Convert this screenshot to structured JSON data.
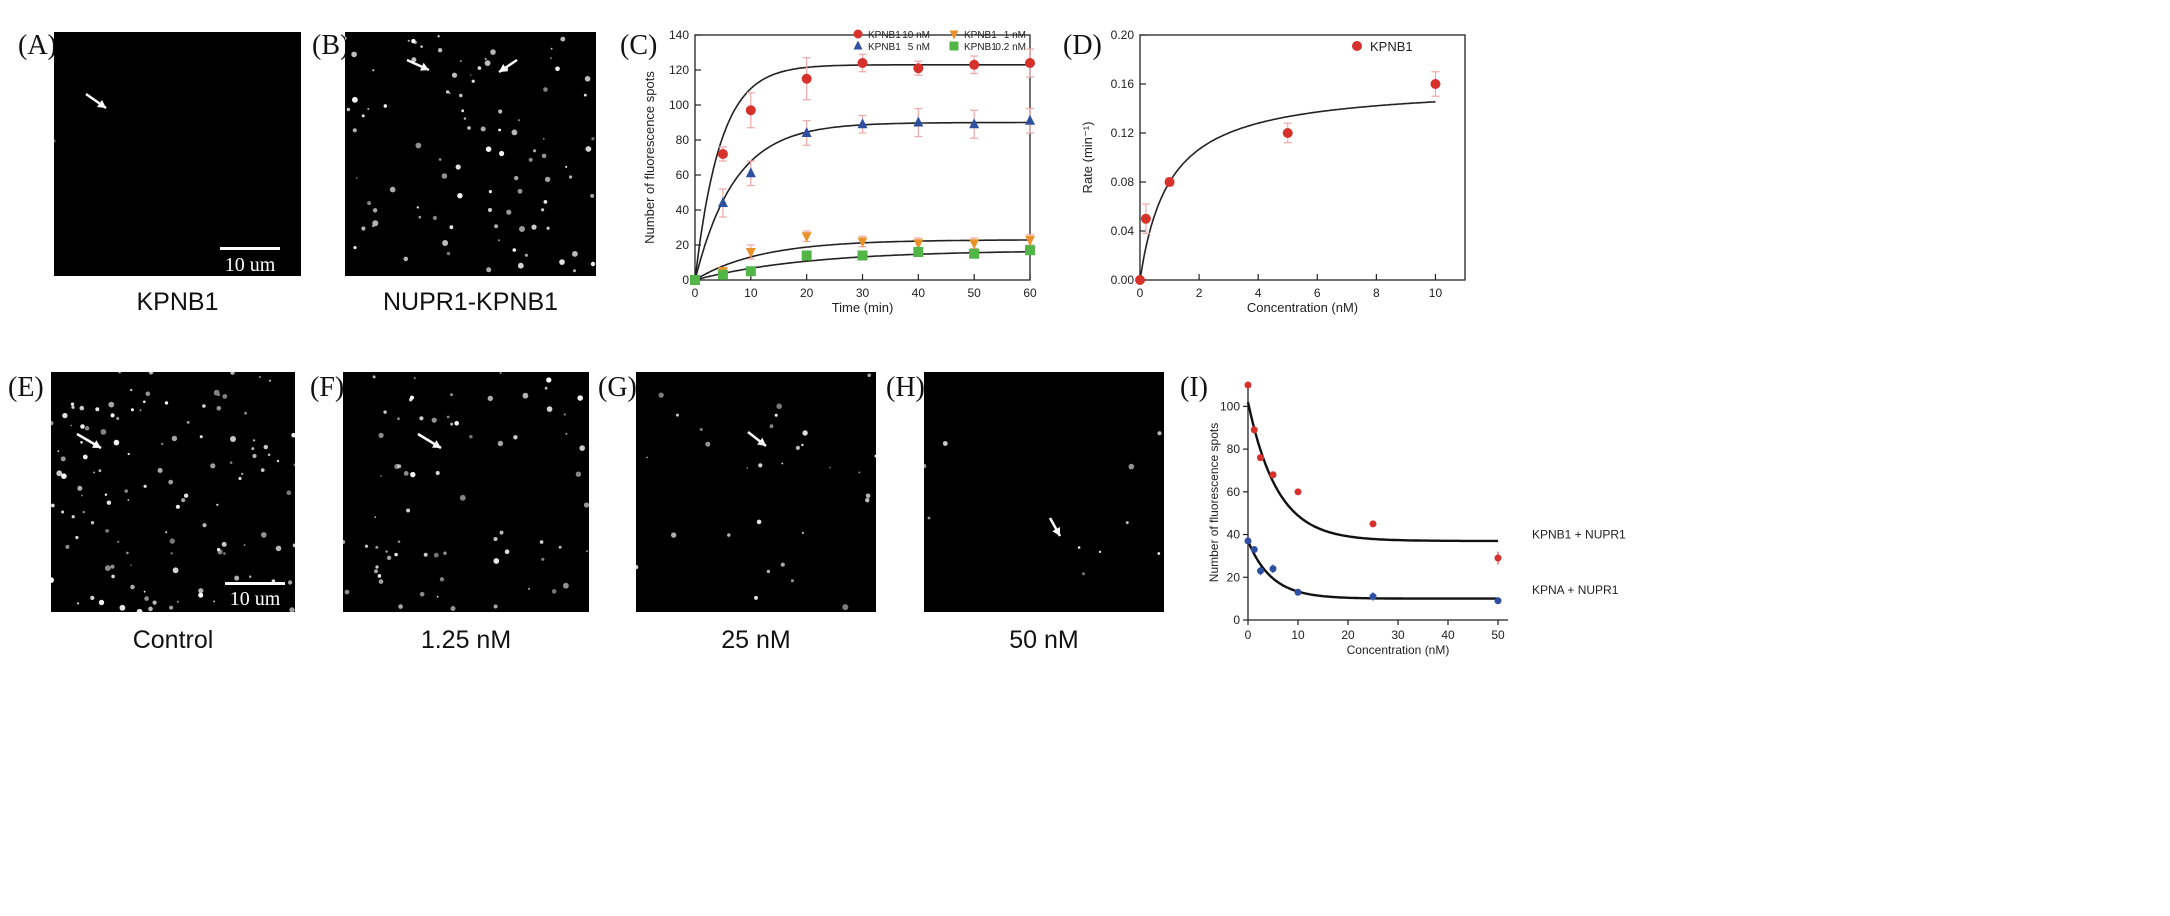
{
  "panels": {
    "A": {
      "label": "(A)",
      "caption": "KPNB1",
      "scalebar": "10 um"
    },
    "B": {
      "label": "(B)",
      "caption": "NUPR1-KPNB1"
    },
    "C": {
      "label": "(C)"
    },
    "D": {
      "label": "(D)"
    },
    "E": {
      "label": "(E)",
      "caption": "Control",
      "scalebar": "10 um"
    },
    "F": {
      "label": "(F)",
      "caption": "1.25 nM"
    },
    "G": {
      "label": "(G)",
      "caption": "25 nM"
    },
    "H": {
      "label": "(H)",
      "caption": "50 nM"
    },
    "I": {
      "label": "(I)"
    }
  },
  "colors": {
    "red": "#d7312c",
    "blue": "#2f4fa0",
    "orange": "#e8922a",
    "green": "#52b548",
    "fit": "#222222",
    "error_pink": "#f0a8a8"
  },
  "chart_data": [
    {
      "id": "C",
      "type": "scatter",
      "xlabel": "Time (min)",
      "ylabel": "Number of fluorescence spots",
      "xlim": [
        0,
        60
      ],
      "ylim": [
        0,
        140
      ],
      "xticks": [
        0,
        10,
        20,
        30,
        40,
        50,
        60
      ],
      "yticks": [
        0,
        20,
        40,
        60,
        80,
        100,
        120,
        140
      ],
      "legend_position": "top-right",
      "series": [
        {
          "name": "KPNB1",
          "conc": "10 nM",
          "marker": "circle",
          "color": "#d7312c",
          "x": [
            0,
            5,
            10,
            20,
            30,
            40,
            50,
            60
          ],
          "y": [
            0,
            72,
            97,
            115,
            124,
            121,
            123,
            124
          ],
          "err": [
            0,
            4,
            10,
            12,
            5,
            4,
            5,
            8
          ],
          "fit": {
            "ymax": 123,
            "k": 0.22
          }
        },
        {
          "name": "KPNB1",
          "conc": "5 nM",
          "marker": "triangle",
          "color": "#2f4fa0",
          "x": [
            0,
            5,
            10,
            20,
            30,
            40,
            50,
            60
          ],
          "y": [
            0,
            44,
            61,
            84,
            89,
            90,
            89,
            91
          ],
          "err": [
            0,
            8,
            7,
            7,
            5,
            8,
            8,
            7
          ],
          "fit": {
            "ymax": 90,
            "k": 0.14
          }
        },
        {
          "name": "KPNB1",
          "conc": "1 nM",
          "marker": "triangle-down",
          "color": "#e8922a",
          "x": [
            0,
            5,
            10,
            20,
            30,
            40,
            50,
            60
          ],
          "y": [
            0,
            5,
            16,
            25,
            22,
            21,
            21,
            23
          ],
          "err": [
            0,
            2,
            4,
            3,
            3,
            3,
            3,
            3
          ],
          "fit": {
            "ymax": 23,
            "k": 0.085
          }
        },
        {
          "name": "KPNB1",
          "conc": "0.2 nM",
          "marker": "square",
          "color": "#52b548",
          "x": [
            0,
            5,
            10,
            20,
            30,
            40,
            50,
            60
          ],
          "y": [
            0,
            3,
            5,
            14,
            14,
            16,
            15,
            17
          ],
          "err": [
            0,
            1,
            1,
            2,
            2,
            2,
            2,
            2
          ],
          "fit": {
            "ymax": 17,
            "k": 0.05
          }
        }
      ]
    },
    {
      "id": "D",
      "type": "scatter",
      "xlabel": "Concentration (nM)",
      "ylabel": "Rate (min⁻¹)",
      "xlim": [
        0,
        11
      ],
      "ylim": [
        0,
        0.2
      ],
      "xticks": [
        0,
        2,
        4,
        6,
        8,
        10
      ],
      "yticks": [
        0.0,
        0.04,
        0.08,
        0.12,
        0.16,
        0.2
      ],
      "ytick_labels": [
        "0.00",
        "0.04",
        "0.08",
        "0.12",
        "0.16",
        "0.20"
      ],
      "legend_position": "top-right",
      "series": [
        {
          "name": "KPNB1",
          "marker": "circle",
          "color": "#d7312c",
          "x": [
            0,
            0.2,
            1,
            5,
            10
          ],
          "y": [
            0.0,
            0.05,
            0.08,
            0.12,
            0.16
          ],
          "err": [
            0,
            0.012,
            0.003,
            0.008,
            0.01
          ],
          "fit": {
            "vmax": 0.16,
            "km": 1.0
          }
        }
      ]
    },
    {
      "id": "I",
      "type": "scatter",
      "xlabel": "Concentration  (nM)",
      "ylabel": "Number of fluorescence spots",
      "xlim": [
        0,
        52
      ],
      "ylim": [
        0,
        110
      ],
      "xticks": [
        0,
        10,
        20,
        30,
        40,
        50
      ],
      "yticks": [
        0,
        20,
        40,
        60,
        80,
        100
      ],
      "series": [
        {
          "name": "KPNB1 + NUPR1",
          "marker": "circle",
          "color": "#d7312c",
          "x": [
            0,
            1.25,
            2.5,
            5,
            10,
            25,
            50
          ],
          "y": [
            110,
            89,
            76,
            68,
            60,
            45,
            29
          ],
          "err": [
            0,
            0,
            0,
            0,
            0,
            0,
            3
          ],
          "fit": {
            "a": 65,
            "k": 0.17,
            "c": 37
          }
        },
        {
          "name": "KPNA + NUPR1",
          "marker": "circle",
          "color": "#2f4fa0",
          "x": [
            0,
            1.25,
            2.5,
            5,
            10,
            25,
            50
          ],
          "y": [
            37,
            33,
            23,
            24,
            13,
            11,
            9
          ],
          "err": [
            0,
            0,
            2,
            2,
            1,
            2,
            1
          ],
          "fit": {
            "a": 27,
            "k": 0.21,
            "c": 10
          }
        }
      ]
    }
  ]
}
